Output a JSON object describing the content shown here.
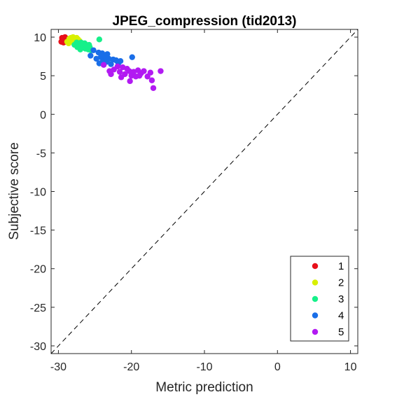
{
  "chart_data": {
    "type": "scatter",
    "title": "JPEG_compression (tid2013)",
    "xlabel": "Metric prediction",
    "ylabel": "Subjective score",
    "xlim": [
      -31,
      11
    ],
    "ylim": [
      -31,
      11
    ],
    "xticks": [
      -30,
      -20,
      -10,
      0,
      10
    ],
    "yticks": [
      -30,
      -25,
      -20,
      -15,
      -10,
      -5,
      0,
      5,
      10
    ],
    "xtick_labels": [
      "-30",
      "-20",
      "-10",
      "0",
      "10"
    ],
    "ytick_labels": [
      "-30",
      "-25",
      "-20",
      "-15",
      "-10",
      "-5",
      "0",
      "5",
      "10"
    ],
    "grid": false,
    "legend_position": "bottom-right",
    "reference_line": {
      "style": "dashed",
      "from": [
        -31,
        -31
      ],
      "to": [
        11,
        11
      ]
    },
    "series": [
      {
        "name": "1",
        "color": "#e8101a",
        "points": [
          [
            -29.6,
            9.4
          ],
          [
            -29.4,
            9.7
          ],
          [
            -29.2,
            9.9
          ],
          [
            -29.0,
            9.5
          ],
          [
            -29.5,
            9.9
          ],
          [
            -28.9,
            9.8
          ],
          [
            -29.3,
            9.3
          ],
          [
            -28.8,
            9.6
          ],
          [
            -29.1,
            10.0
          ],
          [
            -29.5,
            9.5
          ]
        ]
      },
      {
        "name": "2",
        "color": "#d8f000",
        "points": [
          [
            -28.8,
            9.4
          ],
          [
            -28.5,
            9.8
          ],
          [
            -28.2,
            9.5
          ],
          [
            -28.0,
            10.0
          ],
          [
            -27.8,
            9.6
          ],
          [
            -27.5,
            9.9
          ],
          [
            -28.6,
            9.2
          ],
          [
            -27.9,
            9.3
          ],
          [
            -27.3,
            9.7
          ],
          [
            -27.6,
            9.4
          ],
          [
            -28.3,
            9.9
          ],
          [
            -27.1,
            9.5
          ]
        ]
      },
      {
        "name": "3",
        "color": "#16f08a",
        "points": [
          [
            -27.8,
            9.0
          ],
          [
            -27.5,
            9.3
          ],
          [
            -27.2,
            8.8
          ],
          [
            -27.0,
            9.1
          ],
          [
            -26.8,
            8.6
          ],
          [
            -26.6,
            8.9
          ],
          [
            -26.4,
            9.2
          ],
          [
            -26.3,
            8.5
          ],
          [
            -26.1,
            8.8
          ],
          [
            -25.9,
            8.4
          ],
          [
            -25.7,
            8.7
          ],
          [
            -25.5,
            8.3
          ],
          [
            -27.4,
            8.7
          ],
          [
            -26.9,
            9.3
          ],
          [
            -26.2,
            9.0
          ],
          [
            -25.8,
            9.0
          ],
          [
            -24.4,
            9.7
          ],
          [
            -27.0,
            8.4
          ]
        ]
      },
      {
        "name": "4",
        "color": "#1a6ee8",
        "points": [
          [
            -25.6,
            7.6
          ],
          [
            -25.2,
            8.3
          ],
          [
            -24.8,
            7.2
          ],
          [
            -24.5,
            8.0
          ],
          [
            -24.2,
            7.4
          ],
          [
            -23.9,
            6.9
          ],
          [
            -23.6,
            7.5
          ],
          [
            -23.4,
            6.8
          ],
          [
            -23.1,
            7.2
          ],
          [
            -22.8,
            6.5
          ],
          [
            -22.5,
            7.1
          ],
          [
            -22.1,
            7.0
          ],
          [
            -21.8,
            6.6
          ],
          [
            -21.5,
            6.9
          ],
          [
            -24.0,
            7.9
          ],
          [
            -23.3,
            7.8
          ],
          [
            -19.9,
            7.4
          ],
          [
            -24.4,
            6.6
          ]
        ]
      },
      {
        "name": "5",
        "color": "#b21af2",
        "points": [
          [
            -23.8,
            6.4
          ],
          [
            -22.4,
            5.8
          ],
          [
            -21.9,
            6.2
          ],
          [
            -21.6,
            5.5
          ],
          [
            -21.2,
            6.1
          ],
          [
            -20.9,
            5.2
          ],
          [
            -20.6,
            5.9
          ],
          [
            -20.3,
            5.6
          ],
          [
            -20.0,
            5.0
          ],
          [
            -19.7,
            5.5
          ],
          [
            -19.4,
            4.9
          ],
          [
            -19.1,
            5.7
          ],
          [
            -18.7,
            5.3
          ],
          [
            -18.3,
            5.6
          ],
          [
            -17.8,
            4.9
          ],
          [
            -17.4,
            5.4
          ],
          [
            -17.2,
            4.4
          ],
          [
            -17.0,
            3.4
          ],
          [
            -16.0,
            5.6
          ],
          [
            -22.8,
            5.2
          ],
          [
            -21.4,
            4.8
          ],
          [
            -20.2,
            4.3
          ],
          [
            -18.9,
            5.0
          ],
          [
            -23.0,
            5.6
          ]
        ]
      }
    ]
  }
}
